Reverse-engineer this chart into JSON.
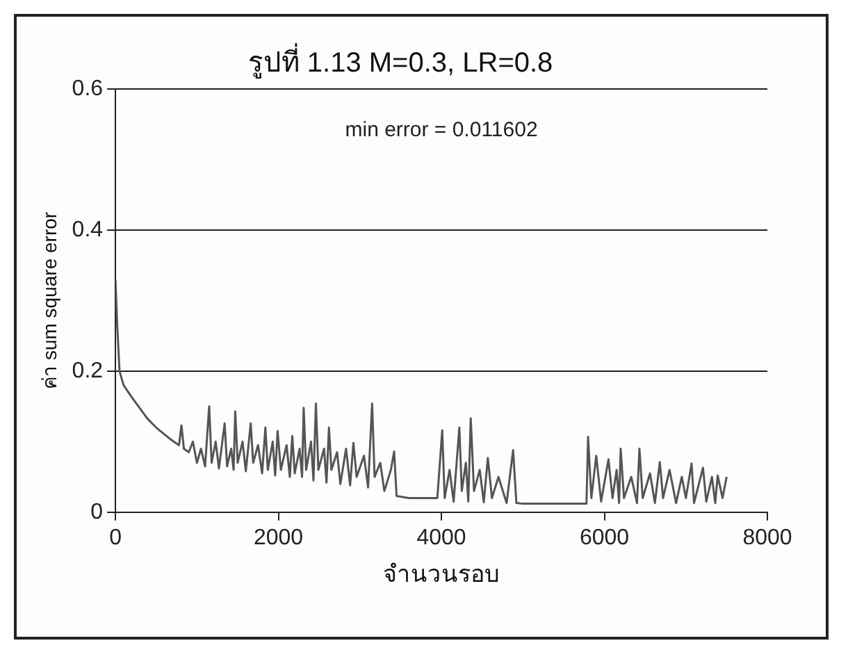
{
  "chart_data": {
    "type": "line",
    "title": "รูปที่ 1.13 M=0.3, LR=0.8",
    "xlabel": "จำนวนรอบ",
    "ylabel": "ค่า sum square error",
    "annotations": [
      "min error = 0.011602"
    ],
    "xlim": [
      0,
      8000
    ],
    "xticks": [
      0,
      2000,
      4000,
      6000,
      8000
    ],
    "ylim": [
      0,
      0.6
    ],
    "yticks": [
      0,
      0.2,
      0.4,
      0.6
    ],
    "grid": "y",
    "legend": false,
    "marker": "none",
    "line_style": "solid",
    "series": [
      {
        "color": "#555555",
        "x": [
          0,
          20,
          50,
          100,
          200,
          390,
          500,
          680,
          780,
          810,
          840,
          900,
          950,
          1000,
          1050,
          1100,
          1150,
          1180,
          1230,
          1270,
          1340,
          1370,
          1420,
          1450,
          1470,
          1500,
          1560,
          1600,
          1660,
          1690,
          1750,
          1800,
          1840,
          1870,
          1930,
          1960,
          1990,
          2030,
          2100,
          2140,
          2170,
          2200,
          2260,
          2290,
          2310,
          2340,
          2400,
          2430,
          2460,
          2490,
          2560,
          2590,
          2620,
          2650,
          2720,
          2760,
          2830,
          2880,
          2920,
          2960,
          3050,
          3100,
          3150,
          3180,
          3250,
          3300,
          3380,
          3420,
          3450,
          3600,
          3950,
          4010,
          4040,
          4100,
          4150,
          4220,
          4250,
          4300,
          4330,
          4360,
          4400,
          4470,
          4520,
          4570,
          4620,
          4700,
          4800,
          4880,
          4920,
          5000,
          5400,
          5780,
          5800,
          5840,
          5900,
          5960,
          6050,
          6100,
          6150,
          6180,
          6200,
          6240,
          6330,
          6400,
          6430,
          6470,
          6560,
          6620,
          6680,
          6720,
          6800,
          6880,
          6950,
          7000,
          7070,
          7100,
          7210,
          7250,
          7320,
          7360,
          7390,
          7450,
          7500
        ],
        "values": [
          0.33,
          0.27,
          0.2,
          0.18,
          0.163,
          0.133,
          0.12,
          0.103,
          0.095,
          0.123,
          0.09,
          0.085,
          0.1,
          0.07,
          0.09,
          0.065,
          0.15,
          0.07,
          0.1,
          0.062,
          0.126,
          0.065,
          0.09,
          0.06,
          0.143,
          0.07,
          0.1,
          0.058,
          0.126,
          0.07,
          0.095,
          0.055,
          0.12,
          0.06,
          0.1,
          0.052,
          0.115,
          0.06,
          0.095,
          0.05,
          0.108,
          0.055,
          0.09,
          0.05,
          0.148,
          0.06,
          0.1,
          0.045,
          0.154,
          0.06,
          0.09,
          0.042,
          0.12,
          0.06,
          0.085,
          0.04,
          0.09,
          0.038,
          0.098,
          0.05,
          0.08,
          0.035,
          0.154,
          0.05,
          0.07,
          0.03,
          0.06,
          0.086,
          0.023,
          0.02,
          0.02,
          0.116,
          0.02,
          0.06,
          0.015,
          0.12,
          0.03,
          0.07,
          0.015,
          0.133,
          0.03,
          0.06,
          0.014,
          0.077,
          0.02,
          0.05,
          0.013,
          0.088,
          0.013,
          0.012,
          0.012,
          0.012,
          0.107,
          0.02,
          0.08,
          0.015,
          0.075,
          0.02,
          0.06,
          0.013,
          0.09,
          0.02,
          0.05,
          0.013,
          0.09,
          0.02,
          0.055,
          0.013,
          0.071,
          0.02,
          0.06,
          0.013,
          0.05,
          0.02,
          0.069,
          0.013,
          0.063,
          0.015,
          0.05,
          0.013,
          0.052,
          0.02,
          0.05
        ]
      }
    ]
  }
}
